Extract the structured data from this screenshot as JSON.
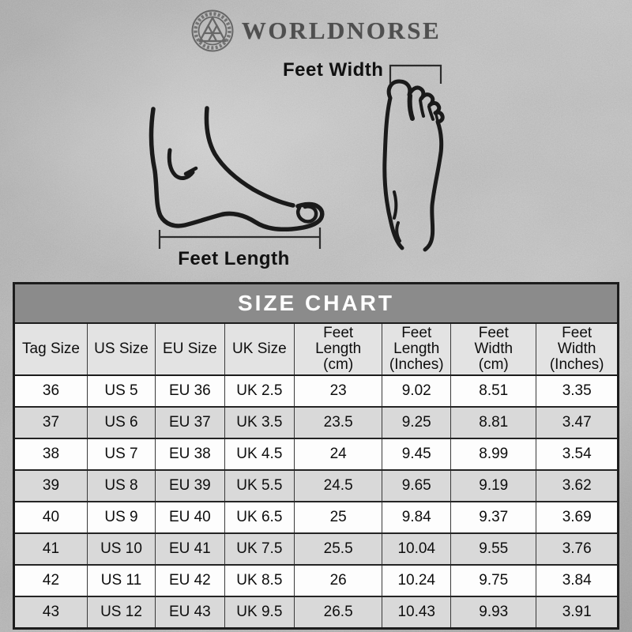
{
  "brand": {
    "name": "WORLDNORSE",
    "logo_icon": "valknut-circle-logo"
  },
  "diagram": {
    "width_label": "Feet Width",
    "length_label": "Feet Length"
  },
  "chart_data": {
    "type": "table",
    "title": "SIZE CHART",
    "columns": [
      "Tag Size",
      "US Size",
      "EU Size",
      "UK Size",
      "Feet\nLength\n(cm)",
      "Feet\nLength\n(Inches)",
      "Feet\nWidth\n(cm)",
      "Feet\nWidth\n(Inches)"
    ],
    "rows": [
      [
        "36",
        "US 5",
        "EU 36",
        "UK 2.5",
        "23",
        "9.02",
        "8.51",
        "3.35"
      ],
      [
        "37",
        "US 6",
        "EU 37",
        "UK 3.5",
        "23.5",
        "9.25",
        "8.81",
        "3.47"
      ],
      [
        "38",
        "US 7",
        "EU 38",
        "UK 4.5",
        "24",
        "9.45",
        "8.99",
        "3.54"
      ],
      [
        "39",
        "US 8",
        "EU 39",
        "UK 5.5",
        "24.5",
        "9.65",
        "9.19",
        "3.62"
      ],
      [
        "40",
        "US 9",
        "EU 40",
        "UK 6.5",
        "25",
        "9.84",
        "9.37",
        "3.69"
      ],
      [
        "41",
        "US 10",
        "EU 41",
        "UK 7.5",
        "25.5",
        "10.04",
        "9.55",
        "3.76"
      ],
      [
        "42",
        "US 11",
        "EU 42",
        "UK 8.5",
        "26",
        "10.24",
        "9.75",
        "3.84"
      ],
      [
        "43",
        "US 12",
        "EU 43",
        "UK 9.5",
        "26.5",
        "10.43",
        "9.93",
        "3.91"
      ]
    ]
  },
  "colors": {
    "title_bar": "#8b8b8b",
    "title_text": "#ffffff",
    "header_row": "#e3e3e3",
    "row_odd": "#fdfdfd",
    "row_even": "#d9d9d9",
    "table_border": "#1c1c1c",
    "grid_line": "#3a3a3a",
    "ink": "#1a1a1a",
    "brand_ink": "#4f4f4f",
    "background": "#cbcbcb"
  }
}
